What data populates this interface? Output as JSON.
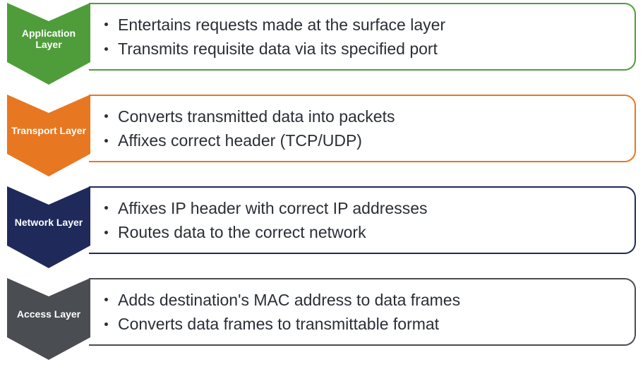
{
  "diagram": {
    "type": "infographic",
    "background_color": "#ffffff",
    "text_color": "#2a2f36",
    "label_text_color": "#ffffff",
    "label_fontsize": 14,
    "bullet_fontsize": 23,
    "layers": [
      {
        "label": "Application Layer",
        "color": "#4f9d3a",
        "bullets": [
          "Entertains requests made at the surface layer",
          "Transmits requisite data via its specified port"
        ]
      },
      {
        "label": "Transport Layer",
        "color": "#e87722",
        "bullets": [
          "Converts transmitted data into packets",
          "Affixes correct header (TCP/UDP)"
        ]
      },
      {
        "label": "Network Layer",
        "color": "#1f2a5b",
        "bullets": [
          "Affixes IP header with correct IP addresses",
          "Routes data to the correct network"
        ]
      },
      {
        "label": "Access Layer",
        "color": "#4a4d52",
        "bullets": [
          "Adds destination's MAC address to data frames",
          "Converts data frames to transmittable format"
        ]
      }
    ]
  }
}
